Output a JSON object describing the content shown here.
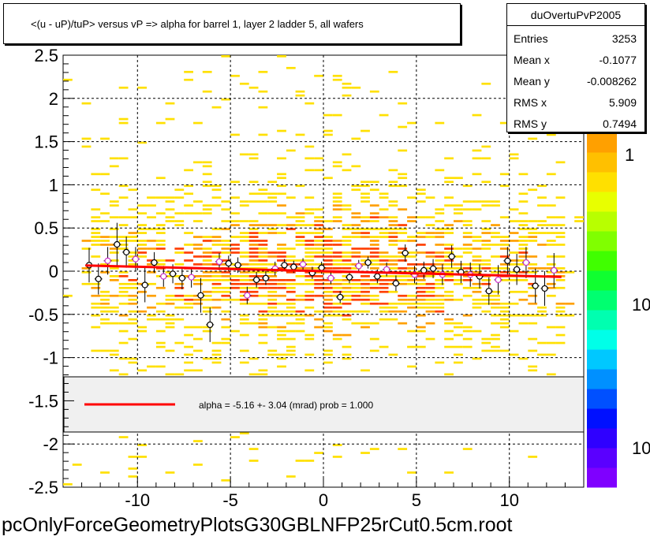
{
  "title": "<(u - uP)/tuP> versus   vP => alpha for barrel 1, layer 2 ladder 5, all wafers",
  "stats": {
    "name": "duOvertuPvP2005",
    "rows": [
      {
        "label": "Entries",
        "value": "3253"
      },
      {
        "label": "Mean x",
        "value": "-0.1077"
      },
      {
        "label": "Mean y",
        "value": "-0.008262"
      },
      {
        "label": "RMS x",
        "value": "5.909"
      },
      {
        "label": "RMS y",
        "value": "0.7494"
      }
    ]
  },
  "fit_legend": "alpha =   -5.16 +-  3.04 (mrad) prob = 1.000",
  "filename": "pcOnlyForceGeometryPlotsG30GBLNFP25rCut0.5cm.root",
  "colors": {
    "fit_line": "#ff0000",
    "legend_bg": "#f0f0f0",
    "profile_marker_a": "#000000",
    "profile_marker_b": "#cc33cc",
    "heat_low": "#ffe000",
    "heat_mid": "#ffa000",
    "heat_high": "#ff4000"
  },
  "chart_data": {
    "type": "heatmap",
    "xlim": [
      -14,
      14
    ],
    "ylim": [
      -2.5,
      2.5
    ],
    "x_ticks": [
      -10,
      -5,
      0,
      5,
      10
    ],
    "y_ticks": [
      -2.5,
      -2,
      -1.5,
      -1,
      -0.5,
      0,
      0.5,
      1,
      1.5,
      2,
      2.5
    ],
    "x_tick_labels": [
      "-10",
      "-5",
      "0",
      "5",
      "10"
    ],
    "y_tick_labels": [
      "-2.5",
      "-2",
      "-1.5",
      "-1",
      "-0.5",
      "0",
      "0.5",
      "1",
      "1.5",
      "2",
      "2.5"
    ],
    "grid": true,
    "colorbar_labels": [
      "1",
      "10",
      "10"
    ],
    "fit_line": {
      "x": [
        -12.8,
        12.8
      ],
      "y": [
        0.066,
        -0.066
      ]
    },
    "profile": {
      "x": [
        -12.6,
        -12.1,
        -11.6,
        -11.1,
        -10.6,
        -10.1,
        -9.6,
        -9.1,
        -8.6,
        -8.1,
        -7.6,
        -7.1,
        -6.6,
        -6.1,
        -5.6,
        -5.1,
        -4.6,
        -4.1,
        -3.6,
        -3.1,
        -2.6,
        -2.1,
        -1.6,
        -1.1,
        -0.6,
        -0.1,
        0.4,
        0.9,
        1.4,
        1.9,
        2.4,
        2.9,
        3.4,
        3.9,
        4.4,
        4.9,
        5.4,
        5.9,
        6.4,
        6.9,
        7.4,
        7.9,
        8.4,
        8.9,
        9.4,
        9.9,
        10.4,
        10.9,
        11.4,
        11.9,
        12.4
      ],
      "y": [
        0.07,
        -0.09,
        0.12,
        0.31,
        0.22,
        0.14,
        -0.16,
        0.1,
        -0.06,
        -0.03,
        -0.08,
        -0.07,
        -0.28,
        -0.62,
        0.11,
        0.09,
        0.07,
        -0.28,
        -0.1,
        -0.08,
        0.03,
        0.07,
        0.05,
        0.08,
        -0.02,
        0.04,
        -0.08,
        -0.3,
        -0.07,
        0.06,
        0.1,
        -0.06,
        0.02,
        -0.14,
        0.21,
        -0.04,
        0.01,
        0.03,
        -0.04,
        0.17,
        -0.01,
        -0.04,
        -0.06,
        -0.23,
        -0.1,
        0.12,
        0.02,
        0.1,
        -0.17,
        -0.2,
        0.01
      ],
      "err": [
        0.2,
        0.18,
        0.16,
        0.25,
        0.18,
        0.14,
        0.2,
        0.12,
        0.12,
        0.11,
        0.13,
        0.12,
        0.2,
        0.2,
        0.1,
        0.09,
        0.09,
        0.1,
        0.09,
        0.08,
        0.08,
        0.07,
        0.07,
        0.07,
        0.07,
        0.07,
        0.07,
        0.07,
        0.07,
        0.07,
        0.07,
        0.08,
        0.08,
        0.09,
        0.1,
        0.1,
        0.1,
        0.11,
        0.12,
        0.13,
        0.13,
        0.14,
        0.14,
        0.16,
        0.17,
        0.16,
        0.18,
        0.18,
        0.2,
        0.2,
        0.2
      ]
    }
  }
}
